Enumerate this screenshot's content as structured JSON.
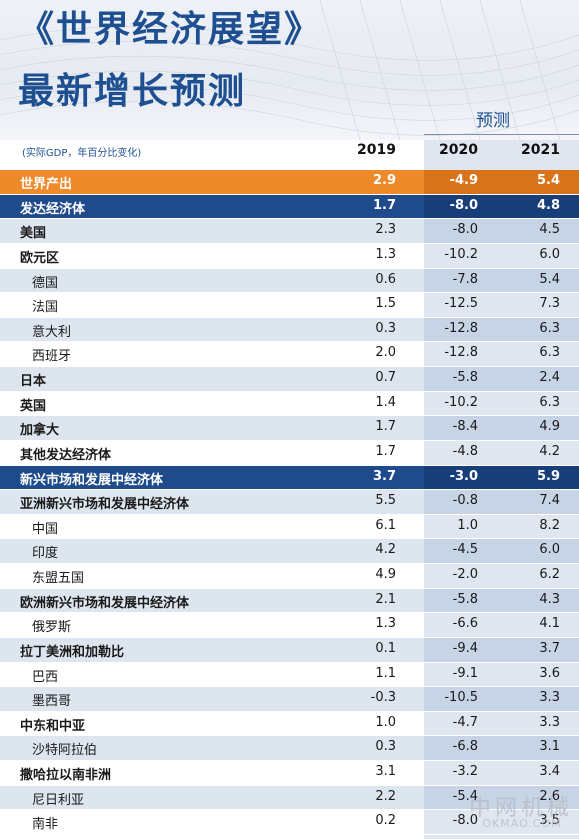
{
  "header": {
    "title_line1": "《世界经济展望》",
    "title_line2": "最新增长预测",
    "forecast_label": "预测",
    "unit_note": "(实际GDP，年百分比变化)",
    "years": [
      "2019",
      "2020",
      "2021"
    ]
  },
  "rows": [
    {
      "label": "世界产出",
      "v": [
        "2.9",
        "-4.9",
        "5.4"
      ],
      "level": 0,
      "style": "orange"
    },
    {
      "label": "发达经济体",
      "v": [
        "1.7",
        "-8.0",
        "4.8"
      ],
      "level": 0,
      "style": "blue"
    },
    {
      "label": "美国",
      "v": [
        "2.3",
        "-8.0",
        "4.5"
      ],
      "level": 0,
      "style": "band"
    },
    {
      "label": "欧元区",
      "v": [
        "1.3",
        "-10.2",
        "6.0"
      ],
      "level": 0,
      "style": "plain"
    },
    {
      "label": "德国",
      "v": [
        "0.6",
        "-7.8",
        "5.4"
      ],
      "level": 1,
      "style": "band"
    },
    {
      "label": "法国",
      "v": [
        "1.5",
        "-12.5",
        "7.3"
      ],
      "level": 1,
      "style": "plain"
    },
    {
      "label": "意大利",
      "v": [
        "0.3",
        "-12.8",
        "6.3"
      ],
      "level": 1,
      "style": "band"
    },
    {
      "label": "西班牙",
      "v": [
        "2.0",
        "-12.8",
        "6.3"
      ],
      "level": 1,
      "style": "plain"
    },
    {
      "label": "日本",
      "v": [
        "0.7",
        "-5.8",
        "2.4"
      ],
      "level": 0,
      "style": "band"
    },
    {
      "label": "英国",
      "v": [
        "1.4",
        "-10.2",
        "6.3"
      ],
      "level": 0,
      "style": "plain"
    },
    {
      "label": "加拿大",
      "v": [
        "1.7",
        "-8.4",
        "4.9"
      ],
      "level": 0,
      "style": "band"
    },
    {
      "label": "其他发达经济体",
      "v": [
        "1.7",
        "-4.8",
        "4.2"
      ],
      "level": 0,
      "style": "plain"
    },
    {
      "label": "新兴市场和发展中经济体",
      "v": [
        "3.7",
        "-3.0",
        "5.9"
      ],
      "level": 0,
      "style": "blue"
    },
    {
      "label": "亚洲新兴市场和发展中经济体",
      "v": [
        "5.5",
        "-0.8",
        "7.4"
      ],
      "level": 0,
      "style": "band"
    },
    {
      "label": "中国",
      "v": [
        "6.1",
        "1.0",
        "8.2"
      ],
      "level": 1,
      "style": "plain"
    },
    {
      "label": "印度",
      "v": [
        "4.2",
        "-4.5",
        "6.0"
      ],
      "level": 1,
      "style": "band"
    },
    {
      "label": "东盟五国",
      "v": [
        "4.9",
        "-2.0",
        "6.2"
      ],
      "level": 1,
      "style": "plain"
    },
    {
      "label": "欧洲新兴市场和发展中经济体",
      "v": [
        "2.1",
        "-5.8",
        "4.3"
      ],
      "level": 0,
      "style": "band"
    },
    {
      "label": "俄罗斯",
      "v": [
        "1.3",
        "-6.6",
        "4.1"
      ],
      "level": 1,
      "style": "plain"
    },
    {
      "label": "拉丁美洲和加勒比",
      "v": [
        "0.1",
        "-9.4",
        "3.7"
      ],
      "level": 0,
      "style": "band"
    },
    {
      "label": "巴西",
      "v": [
        "1.1",
        "-9.1",
        "3.6"
      ],
      "level": 1,
      "style": "plain"
    },
    {
      "label": "墨西哥",
      "v": [
        "-0.3",
        "-10.5",
        "3.3"
      ],
      "level": 1,
      "style": "band"
    },
    {
      "label": "中东和中亚",
      "v": [
        "1.0",
        "-4.7",
        "3.3"
      ],
      "level": 0,
      "style": "plain"
    },
    {
      "label": "沙特阿拉伯",
      "v": [
        "0.3",
        "-6.8",
        "3.1"
      ],
      "level": 1,
      "style": "band"
    },
    {
      "label": "撒哈拉以南非洲",
      "v": [
        "3.1",
        "-3.2",
        "3.4"
      ],
      "level": 0,
      "style": "plain"
    },
    {
      "label": "尼日利亚",
      "v": [
        "2.2",
        "-5.4",
        "2.6"
      ],
      "level": 1,
      "style": "band"
    },
    {
      "label": "南非",
      "v": [
        "0.2",
        "-8.0",
        "3.5"
      ],
      "level": 1,
      "style": "plain"
    }
  ],
  "watermark": {
    "main": "中网机械",
    "sub": "OKMAO.COM"
  }
}
